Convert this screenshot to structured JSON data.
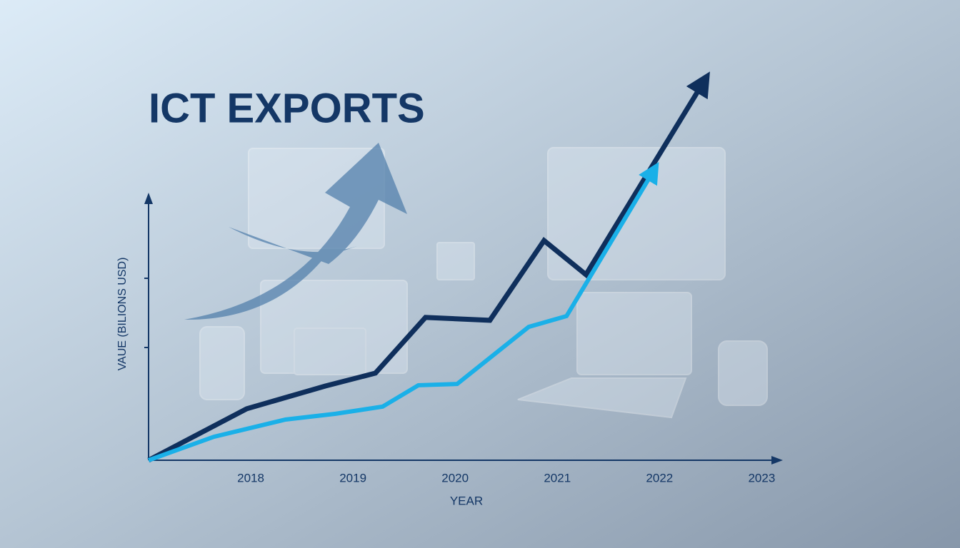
{
  "chart_data": {
    "type": "line",
    "title": "ICT EXPORTS",
    "x_label": "YEAR",
    "y_label": "VAUE (BILIONS USD)",
    "xlim": [
      2017,
      2023.2
    ],
    "xticks": [
      2018,
      2019,
      2020,
      2021,
      2022,
      2023
    ],
    "ylim": [
      0,
      150
    ],
    "series": [
      {
        "color": "#0f2f5c",
        "x": [
          2017,
          2017.96,
          2018.73,
          2019.22,
          2019.71,
          2020.34,
          2020.87,
          2021.28,
          2022.43
        ],
        "values": [
          0,
          19.5,
          28.1,
          33.0,
          54.1,
          53.0,
          83.2,
          70.3,
          143.2
        ]
      },
      {
        "color": "#1ab0e8",
        "x": [
          2017,
          2017.64,
          2018.34,
          2018.83,
          2019.29,
          2019.64,
          2020.02,
          2020.72,
          2021.09,
          2021.94
        ],
        "values": [
          0,
          8.9,
          15.4,
          17.6,
          20.3,
          28.4,
          28.9,
          50.5,
          54.6,
          109.5
        ]
      }
    ]
  }
}
